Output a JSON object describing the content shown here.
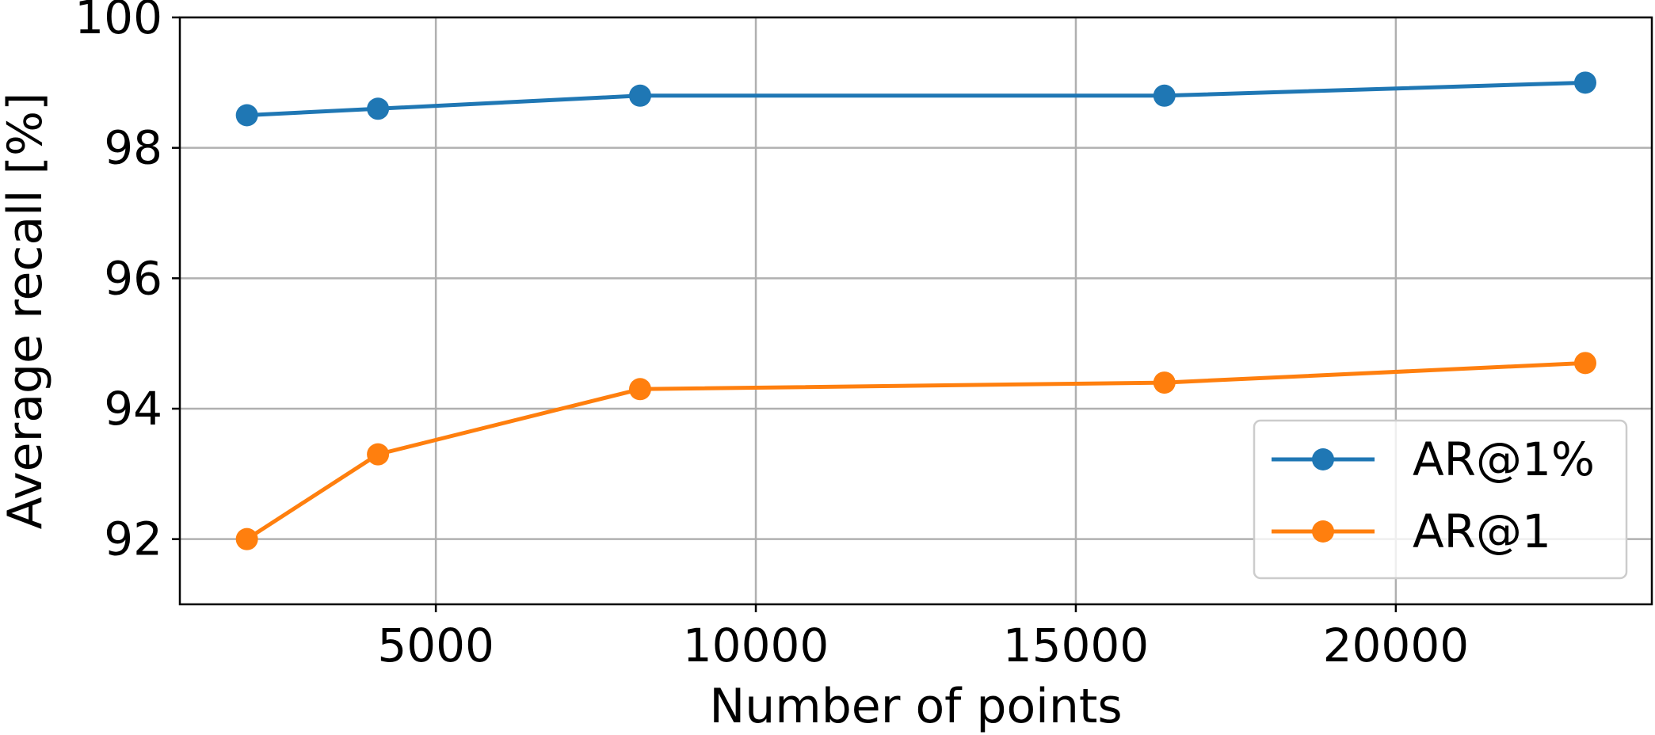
{
  "chart_data": {
    "type": "line",
    "title": "",
    "xlabel": "Number of points",
    "ylabel": "Average recall [%]",
    "xlim": [
      1000,
      24000
    ],
    "ylim": [
      91,
      100
    ],
    "xticks": [
      5000,
      10000,
      15000,
      20000
    ],
    "yticks": [
      92,
      94,
      96,
      98,
      100
    ],
    "grid": true,
    "legend_position": "lower-right",
    "series": [
      {
        "name": "AR@1%",
        "color": "#1f77b4",
        "x": [
          2048,
          4096,
          8192,
          16384,
          22960
        ],
        "y": [
          98.5,
          98.6,
          98.8,
          98.8,
          99.0
        ]
      },
      {
        "name": "AR@1",
        "color": "#ff7f0e",
        "x": [
          2048,
          4096,
          8192,
          16384,
          22960
        ],
        "y": [
          92.0,
          93.3,
          94.3,
          94.4,
          94.7
        ]
      }
    ]
  }
}
